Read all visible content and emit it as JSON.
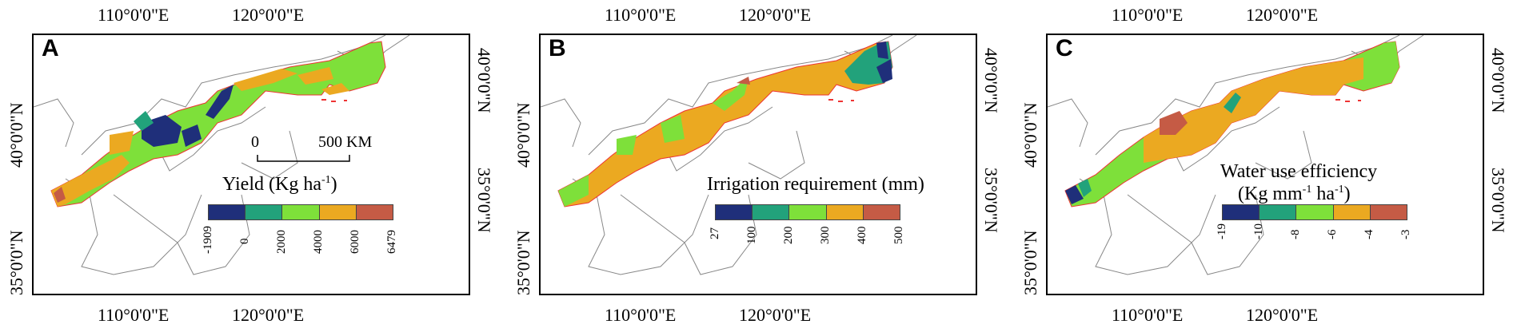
{
  "axes": {
    "lon_labels": [
      "110°0'0\"E",
      "120°0'0\"E"
    ],
    "lat_labels": [
      "40°0'0\"N",
      "35°0'0\"N"
    ]
  },
  "panels": [
    {
      "letter": "A",
      "legend_title": "Yield (Kg ha",
      "legend_sup": "-1",
      "legend_title_end": ")",
      "legend_title2": "",
      "ticks": [
        "-1909",
        "0",
        "2000",
        "4000",
        "6000",
        "6479"
      ],
      "colors": [
        "#1f2f7a",
        "#22a27b",
        "#7ee03a",
        "#eba921",
        "#c55b45"
      ],
      "scalebar": {
        "left": "0",
        "right": "500 KM"
      }
    },
    {
      "letter": "B",
      "legend_title": "Irrigation requirement (mm)",
      "legend_sup": "",
      "legend_title_end": "",
      "legend_title2": "",
      "ticks": [
        "27",
        "100",
        "200",
        "300",
        "400",
        "500"
      ],
      "colors": [
        "#1f2f7a",
        "#22a27b",
        "#7ee03a",
        "#eba921",
        "#c55b45"
      ]
    },
    {
      "letter": "C",
      "legend_title": "Water use efficiency",
      "legend_sup": "",
      "legend_title_end": "",
      "legend_title2": "(Kg mm",
      "legend_sup2": "-1",
      "legend_sup2b": " ha",
      "legend_sup3": "-1",
      "legend_title2_end": ")",
      "ticks": [
        "-19",
        "-10",
        "-8",
        "-6",
        "-4",
        "-3"
      ],
      "colors": [
        "#1f2f7a",
        "#22a27b",
        "#7ee03a",
        "#eba921",
        "#c55b45"
      ]
    }
  ]
}
